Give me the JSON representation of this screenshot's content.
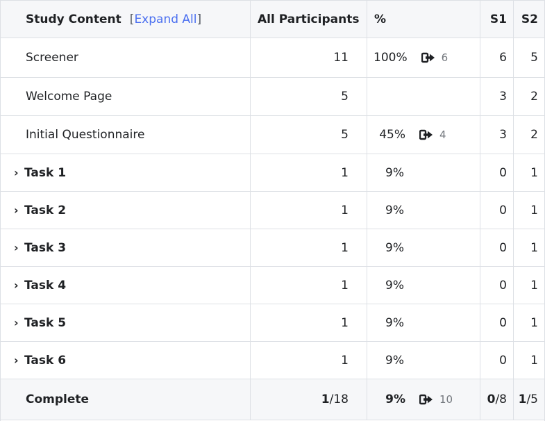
{
  "header": {
    "study_content": "Study Content",
    "expand_all": "Expand All",
    "bracket_open": "[",
    "bracket_close": "]",
    "all_participants": "All Participants",
    "percent": "%",
    "s1": "S1",
    "s2": "S2"
  },
  "rows": [
    {
      "label": "Screener",
      "all": "11",
      "pct": "100%",
      "exit": "6",
      "s1": "6",
      "s2": "5"
    },
    {
      "label": "Welcome Page",
      "all": "5",
      "pct": "",
      "exit": "",
      "s1": "3",
      "s2": "2"
    },
    {
      "label": "Initial Questionnaire",
      "all": "5",
      "pct": "45%",
      "exit": "4",
      "s1": "3",
      "s2": "2"
    }
  ],
  "tasks": [
    {
      "chevron": "›",
      "label": "Task 1",
      "all": "1",
      "pct": "9%",
      "s1": "0",
      "s2": "1"
    },
    {
      "chevron": "›",
      "label": "Task 2",
      "all": "1",
      "pct": "9%",
      "s1": "0",
      "s2": "1"
    },
    {
      "chevron": "›",
      "label": "Task 3",
      "all": "1",
      "pct": "9%",
      "s1": "0",
      "s2": "1"
    },
    {
      "chevron": "›",
      "label": "Task 4",
      "all": "1",
      "pct": "9%",
      "s1": "0",
      "s2": "1"
    },
    {
      "chevron": "›",
      "label": "Task 5",
      "all": "1",
      "pct": "9%",
      "s1": "0",
      "s2": "1"
    },
    {
      "chevron": "›",
      "label": "Task 6",
      "all": "1",
      "pct": "9%",
      "s1": "0",
      "s2": "1"
    }
  ],
  "footer": {
    "label": "Complete",
    "all_num": "1",
    "all_den": "/18",
    "pct": "9%",
    "exit": "10",
    "s1_num": "0",
    "s1_den": "/8",
    "s2_num": "1",
    "s2_den": "/5"
  },
  "icons": {
    "exit": "exit-arrow-icon",
    "chevron": "chevron-right-icon"
  },
  "colors": {
    "link": "#4a6ff0",
    "header_bg": "#f6f7f9",
    "border": "#dde0e5"
  }
}
